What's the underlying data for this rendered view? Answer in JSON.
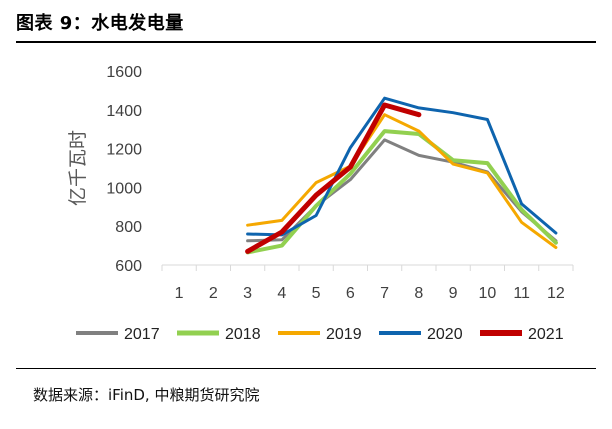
{
  "header": {
    "title": "图表 9：水电发电量"
  },
  "footer": {
    "source": "数据来源：iFinD, 中粮期货研究院"
  },
  "chart_data": {
    "type": "line",
    "title": "",
    "xlabel": "",
    "ylabel": "亿千瓦时",
    "categories": [
      "1",
      "2",
      "3",
      "4",
      "5",
      "6",
      "7",
      "8",
      "9",
      "10",
      "11",
      "12"
    ],
    "ylim": [
      600,
      1600
    ],
    "yticks": [
      600,
      800,
      1000,
      1200,
      1400,
      1600
    ],
    "grid": false,
    "legend_position": "bottom",
    "series": [
      {
        "name": "2017",
        "color": "#808080",
        "width": 3,
        "values": [
          null,
          null,
          725,
          730,
          905,
          1040,
          1245,
          1165,
          1130,
          1080,
          875,
          725
        ]
      },
      {
        "name": "2018",
        "color": "#92D050",
        "width": 4,
        "values": [
          null,
          null,
          665,
          700,
          905,
          1070,
          1290,
          1275,
          1140,
          1125,
          885,
          715
        ]
      },
      {
        "name": "2019",
        "color": "#F5A800",
        "width": 3,
        "values": [
          null,
          null,
          805,
          830,
          1025,
          1110,
          1375,
          1290,
          1120,
          1075,
          820,
          690
        ]
      },
      {
        "name": "2020",
        "color": "#0E64AE",
        "width": 3,
        "values": [
          null,
          null,
          760,
          755,
          855,
          1205,
          1460,
          1410,
          1385,
          1350,
          915,
          765
        ]
      },
      {
        "name": "2021",
        "color": "#C00000",
        "width": 5,
        "values": [
          null,
          null,
          670,
          770,
          960,
          1105,
          1425,
          1375,
          null,
          null,
          null,
          null
        ]
      }
    ]
  }
}
